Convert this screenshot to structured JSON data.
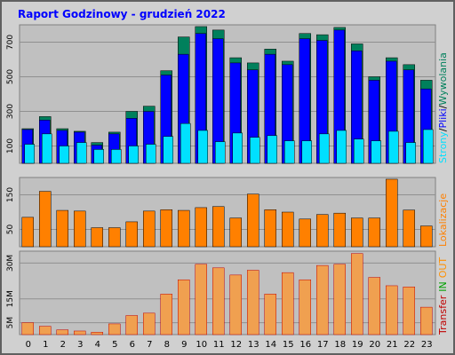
{
  "title": "Raport Godzinowy -  grudzień 2022",
  "chart_data": [
    {
      "type": "bar",
      "ylim": [
        0,
        800
      ],
      "yticks": [
        100,
        300,
        500,
        700
      ],
      "grid": true,
      "legend_separator": "/",
      "series": [
        {
          "name": "Wywolania",
          "color": "#00805c",
          "values": [
            200,
            270,
            200,
            185,
            120,
            180,
            300,
            330,
            535,
            730,
            790,
            770,
            610,
            580,
            660,
            590,
            750,
            743,
            785,
            690,
            500,
            610,
            570,
            480
          ]
        },
        {
          "name": "Pliki",
          "color": "#0000ff",
          "values": [
            195,
            250,
            190,
            180,
            105,
            170,
            260,
            300,
            510,
            630,
            750,
            720,
            580,
            540,
            630,
            570,
            720,
            710,
            770,
            650,
            480,
            590,
            540,
            430
          ]
        },
        {
          "name": "Strony",
          "color": "#00e0ff",
          "values": [
            110,
            170,
            100,
            120,
            80,
            80,
            100,
            110,
            155,
            230,
            190,
            125,
            175,
            150,
            160,
            130,
            130,
            170,
            190,
            140,
            130,
            185,
            120,
            195
          ]
        }
      ]
    },
    {
      "type": "bar",
      "ylim": [
        0,
        200
      ],
      "yticks": [
        50,
        150
      ],
      "grid": true,
      "label": "Lokalizacje",
      "color": "#ff8000",
      "values": [
        85,
        160,
        105,
        103,
        55,
        55,
        72,
        103,
        107,
        105,
        113,
        116,
        83,
        152,
        107,
        100,
        80,
        93,
        97,
        83,
        83,
        195,
        106,
        60
      ]
    },
    {
      "type": "bar",
      "ylim": [
        0,
        35
      ],
      "grid": true,
      "yticks": [
        {
          "value": 5,
          "label": "5M"
        },
        {
          "value": 15,
          "label": "15M"
        },
        {
          "value": 30,
          "label": "30M"
        }
      ],
      "legend": [
        "Transfer",
        "IN",
        "OUT"
      ],
      "legend_colors": [
        "#c00000",
        "#00a000",
        "#ff9000"
      ],
      "color": "#f0a050",
      "edge_color": "#c00000",
      "categories": [
        "0",
        "1",
        "2",
        "3",
        "4",
        "5",
        "6",
        "7",
        "8",
        "9",
        "10",
        "11",
        "12",
        "13",
        "14",
        "15",
        "16",
        "17",
        "18",
        "19",
        "20",
        "21",
        "22",
        "23"
      ],
      "values": [
        5,
        3.5,
        2,
        1.5,
        1,
        4.5,
        8,
        9,
        17,
        23,
        29.5,
        28,
        25,
        27,
        17,
        26,
        23,
        29,
        29.5,
        34,
        24,
        20.5,
        20,
        11.5
      ]
    }
  ]
}
